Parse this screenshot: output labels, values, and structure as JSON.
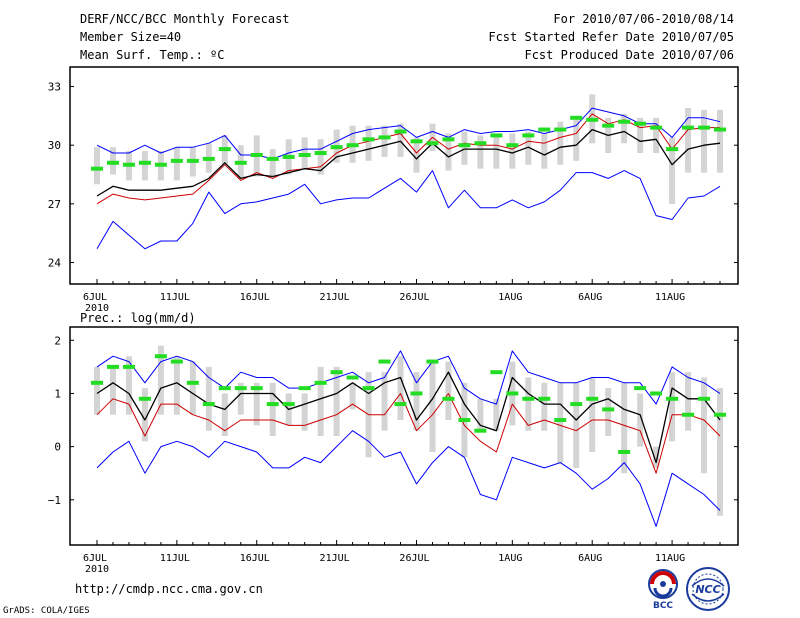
{
  "header": {
    "title": "DERF/NCC/BCC Monthly Forecast",
    "member_size": "Member Size=40",
    "variable": "Mean Surf. Temp.: ºC",
    "period": "For 2010/07/06-2010/08/14",
    "fcst_started": "Fcst Started Refer Date 2010/07/05",
    "fcst_produced": "Fcst Produced Date 2010/07/06"
  },
  "footer": {
    "url": "http://cmdp.ncc.cma.gov.cn",
    "grads": "GrADS: COLA/IGES",
    "logo_bcc": "BCC",
    "logo_ncc": "NCC"
  },
  "colors": {
    "max": "#0000ff",
    "min": "#0000ff",
    "mean": "#000000",
    "median": "#cc0000",
    "obs": "#22dd22",
    "box": "#d4d4d4"
  },
  "chart_data": [
    {
      "type": "line",
      "title": "",
      "xlabel": "",
      "ylabel": "Mean Surf. Temp.: ºC",
      "ylim": [
        22.9,
        34.0
      ],
      "yticks": [
        "24",
        "27",
        "30",
        "33"
      ],
      "ytick_values": [
        24,
        27,
        30,
        33
      ],
      "days": 40,
      "x_tick_labels": [
        "6JUL",
        "11JUL",
        "16JUL",
        "21JUL",
        "26JUL",
        "1AUG",
        "6AUG",
        "11AUG"
      ],
      "x_tick_day_index": [
        0,
        5,
        10,
        15,
        20,
        26,
        31,
        36
      ],
      "year_label": "2010",
      "series": [
        {
          "name": "max",
          "values": [
            30.0,
            29.6,
            29.6,
            30.0,
            29.6,
            29.9,
            29.9,
            30.1,
            30.5,
            29.5,
            29.5,
            29.3,
            29.6,
            29.8,
            29.8,
            30.2,
            30.6,
            30.8,
            30.9,
            31.0,
            30.4,
            30.7,
            30.4,
            30.8,
            30.6,
            30.7,
            30.7,
            30.8,
            30.6,
            30.8,
            31.0,
            31.9,
            31.7,
            31.5,
            31.1,
            31.1,
            30.4,
            31.4,
            31.4,
            31.2
          ]
        },
        {
          "name": "median",
          "values": [
            27.0,
            27.5,
            27.3,
            27.2,
            27.3,
            27.4,
            27.5,
            28.2,
            29.0,
            28.2,
            28.6,
            28.3,
            28.7,
            28.8,
            28.9,
            29.6,
            30.0,
            30.2,
            30.4,
            30.6,
            29.6,
            30.4,
            29.8,
            30.1,
            30.0,
            30.0,
            29.8,
            30.2,
            30.1,
            30.4,
            30.6,
            31.6,
            31.1,
            31.3,
            30.9,
            31.0,
            29.8,
            30.8,
            30.9,
            30.9
          ]
        },
        {
          "name": "mean",
          "values": [
            27.4,
            27.9,
            27.7,
            27.7,
            27.7,
            27.8,
            27.9,
            28.3,
            29.1,
            28.3,
            28.5,
            28.4,
            28.6,
            28.8,
            28.7,
            29.4,
            29.6,
            29.8,
            30.0,
            30.2,
            29.3,
            30.1,
            29.4,
            29.8,
            29.8,
            29.8,
            29.6,
            29.9,
            29.5,
            29.9,
            30.0,
            30.8,
            30.5,
            30.7,
            30.2,
            30.3,
            29.0,
            29.8,
            30.0,
            30.1
          ]
        },
        {
          "name": "min",
          "values": [
            24.7,
            26.1,
            25.4,
            24.7,
            25.1,
            25.1,
            26.0,
            27.6,
            26.5,
            27.0,
            27.1,
            27.3,
            27.5,
            28.0,
            27.0,
            27.2,
            27.3,
            27.3,
            27.8,
            28.3,
            27.6,
            28.7,
            26.8,
            27.7,
            26.8,
            26.8,
            27.2,
            26.8,
            27.1,
            27.7,
            28.6,
            28.6,
            28.3,
            28.7,
            28.3,
            26.4,
            26.2,
            27.3,
            27.4,
            27.9
          ]
        },
        {
          "name": "box_low",
          "values": [
            28.0,
            28.5,
            28.2,
            28.2,
            28.2,
            28.2,
            28.4,
            28.6,
            29.0,
            28.3,
            28.4,
            28.4,
            28.5,
            28.8,
            28.5,
            29.1,
            29.1,
            29.2,
            29.4,
            29.4,
            28.6,
            29.7,
            28.7,
            29.0,
            28.8,
            28.8,
            28.8,
            29.0,
            28.8,
            29.0,
            29.2,
            30.1,
            29.6,
            30.1,
            29.6,
            29.6,
            27.0,
            28.6,
            28.6,
            28.6
          ]
        },
        {
          "name": "box_high",
          "values": [
            29.9,
            29.9,
            29.7,
            29.7,
            29.7,
            29.9,
            29.9,
            30.1,
            30.5,
            30.0,
            30.5,
            29.8,
            30.3,
            30.4,
            30.3,
            30.8,
            31.0,
            31.0,
            31.0,
            31.1,
            30.4,
            31.1,
            30.6,
            30.7,
            30.5,
            30.6,
            30.6,
            30.7,
            30.6,
            31.2,
            31.3,
            32.6,
            31.4,
            31.6,
            31.4,
            31.4,
            30.4,
            31.9,
            31.8,
            31.8
          ]
        },
        {
          "name": "observed",
          "values": [
            28.8,
            29.1,
            29.0,
            29.1,
            29.0,
            29.2,
            29.2,
            29.3,
            29.8,
            29.1,
            29.5,
            29.3,
            29.4,
            29.5,
            29.6,
            29.9,
            30.0,
            30.3,
            30.4,
            30.7,
            30.2,
            30.1,
            30.3,
            30.0,
            30.1,
            30.5,
            30.0,
            30.5,
            30.8,
            30.8,
            31.4,
            31.3,
            31.0,
            31.2,
            31.1,
            30.9,
            29.8,
            30.9,
            30.9,
            30.8
          ]
        }
      ]
    },
    {
      "type": "line",
      "title": "Prec.: log(mm/d)",
      "xlabel": "",
      "ylabel": "Prec.: log(mm/d)",
      "ylim": [
        -1.85,
        2.25
      ],
      "yticks": [
        "−1",
        "0",
        "1",
        "2"
      ],
      "ytick_values": [
        -1,
        0,
        1,
        2
      ],
      "days": 40,
      "x_tick_labels": [
        "6JUL",
        "11JUL",
        "16JUL",
        "21JUL",
        "26JUL",
        "1AUG",
        "6AUG",
        "11AUG"
      ],
      "x_tick_day_index": [
        0,
        5,
        10,
        15,
        20,
        26,
        31,
        36
      ],
      "year_label": "2010",
      "series": [
        {
          "name": "max",
          "values": [
            1.5,
            1.7,
            1.6,
            1.2,
            1.6,
            1.7,
            1.6,
            1.3,
            1.1,
            1.4,
            1.3,
            1.3,
            1.1,
            1.1,
            1.2,
            1.3,
            1.4,
            1.2,
            1.3,
            1.8,
            1.2,
            1.6,
            1.7,
            1.1,
            0.9,
            0.8,
            1.8,
            1.4,
            1.3,
            1.2,
            1.2,
            1.3,
            1.3,
            1.2,
            1.2,
            0.8,
            1.5,
            1.3,
            1.2,
            1.0
          ]
        },
        {
          "name": "median",
          "values": [
            0.6,
            0.9,
            0.8,
            0.2,
            0.8,
            0.8,
            0.6,
            0.5,
            0.3,
            0.5,
            0.5,
            0.5,
            0.4,
            0.4,
            0.5,
            0.6,
            0.8,
            0.6,
            0.6,
            1.0,
            0.3,
            0.6,
            1.0,
            0.4,
            0.1,
            -0.1,
            0.8,
            0.4,
            0.5,
            0.4,
            0.3,
            0.5,
            0.5,
            0.4,
            0.3,
            -0.5,
            0.6,
            0.6,
            0.5,
            0.2
          ]
        },
        {
          "name": "mean",
          "values": [
            1.0,
            1.2,
            1.0,
            0.5,
            1.1,
            1.2,
            1.0,
            0.8,
            0.7,
            1.0,
            1.0,
            1.0,
            0.7,
            0.8,
            0.9,
            1.0,
            1.2,
            1.0,
            1.2,
            1.3,
            0.5,
            0.9,
            1.4,
            0.8,
            0.4,
            0.3,
            1.3,
            1.0,
            0.8,
            0.8,
            0.5,
            0.8,
            0.9,
            0.7,
            0.6,
            -0.3,
            1.1,
            0.9,
            0.9,
            0.5
          ]
        },
        {
          "name": "min",
          "values": [
            -0.4,
            -0.1,
            0.1,
            -0.5,
            0.0,
            0.1,
            0.0,
            -0.2,
            0.1,
            0.0,
            -0.1,
            -0.4,
            -0.4,
            -0.2,
            -0.3,
            0.0,
            0.3,
            0.1,
            -0.2,
            -0.1,
            -0.7,
            -0.3,
            0.0,
            -0.2,
            -0.9,
            -1.0,
            -0.2,
            -0.3,
            -0.4,
            -0.3,
            -0.5,
            -0.8,
            -0.6,
            -0.3,
            -0.7,
            -1.5,
            -0.5,
            -0.7,
            -0.9,
            -1.2
          ]
        },
        {
          "name": "box_low",
          "values": [
            0.6,
            0.6,
            0.6,
            0.1,
            0.6,
            0.6,
            0.6,
            0.3,
            0.2,
            0.6,
            0.4,
            0.2,
            0.4,
            0.3,
            0.2,
            0.2,
            0.7,
            -0.2,
            0.3,
            0.5,
            0.3,
            -0.1,
            0.5,
            -0.2,
            0.3,
            0.3,
            0.4,
            0.3,
            0.3,
            -0.3,
            -0.4,
            -0.1,
            0.2,
            -0.5,
            0.0,
            -0.4,
            0.1,
            0.3,
            -0.5,
            -1.3
          ]
        },
        {
          "name": "box_high",
          "values": [
            1.5,
            1.5,
            1.7,
            1.1,
            1.9,
            1.7,
            1.6,
            1.5,
            1.0,
            1.2,
            1.2,
            1.2,
            1.0,
            1.0,
            1.5,
            1.5,
            1.2,
            1.4,
            1.4,
            1.7,
            1.4,
            1.6,
            1.6,
            1.2,
            0.9,
            0.9,
            1.6,
            1.3,
            1.2,
            1.2,
            1.2,
            1.3,
            1.1,
            1.2,
            1.0,
            0.0,
            1.4,
            1.4,
            1.3,
            1.1
          ]
        },
        {
          "name": "observed",
          "values": [
            1.2,
            1.5,
            1.5,
            0.9,
            1.7,
            1.6,
            1.2,
            0.8,
            1.1,
            1.1,
            1.1,
            0.8,
            0.8,
            1.1,
            1.2,
            1.4,
            1.3,
            1.1,
            1.6,
            0.8,
            1.0,
            1.6,
            0.9,
            0.5,
            0.3,
            1.4,
            1.0,
            0.9,
            0.9,
            0.5,
            0.8,
            0.9,
            0.7,
            -0.1,
            1.1,
            1.0,
            0.9,
            0.6,
            0.9,
            0.6
          ]
        }
      ]
    }
  ]
}
